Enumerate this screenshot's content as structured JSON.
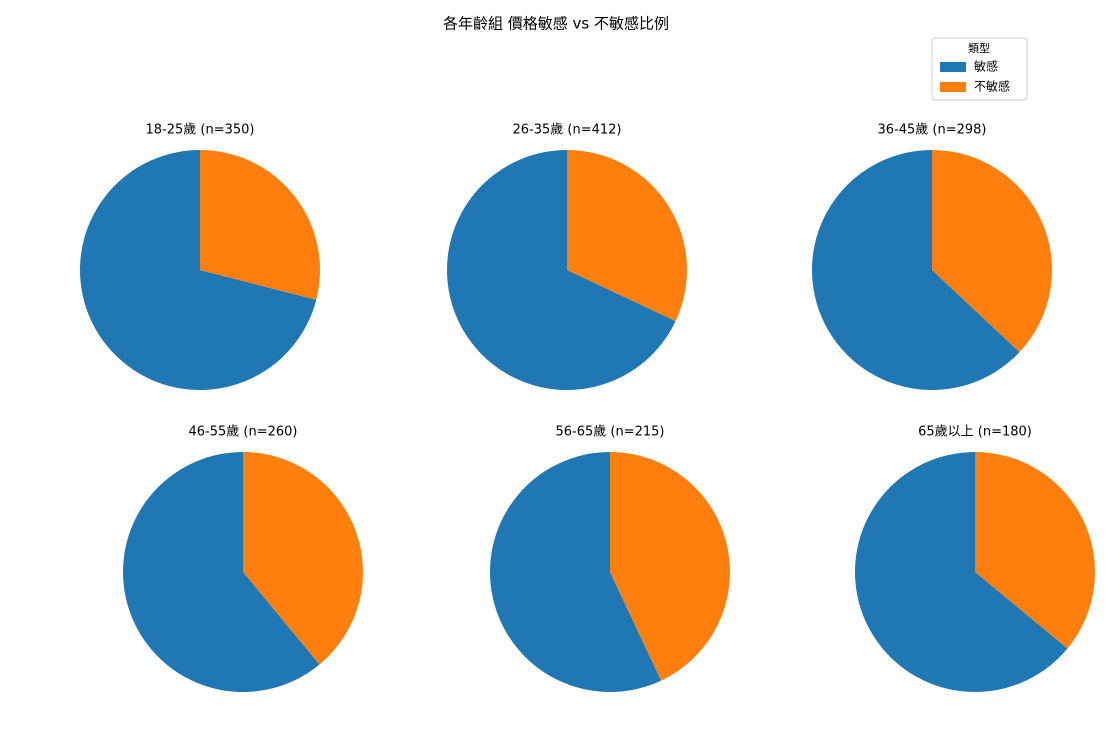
{
  "title": "各年齡組 價格敏感 vs 不敏感比例",
  "legend": {
    "title": "類型",
    "position": "upper right"
  },
  "chart_data": [
    {
      "type": "pie",
      "title": "18-25歲 (n=350)",
      "categories": [
        "敏感",
        "不敏感"
      ],
      "values": [
        71,
        29
      ],
      "colors": [
        "#1f77b4",
        "#ff7f0e"
      ]
    },
    {
      "type": "pie",
      "title": "26-35歲 (n=412)",
      "categories": [
        "敏感",
        "不敏感"
      ],
      "values": [
        68,
        32
      ],
      "colors": [
        "#1f77b4",
        "#ff7f0e"
      ]
    },
    {
      "type": "pie",
      "title": "36-45歲 (n=298)",
      "categories": [
        "敏感",
        "不敏感"
      ],
      "values": [
        63,
        37
      ],
      "colors": [
        "#1f77b4",
        "#ff7f0e"
      ]
    },
    {
      "type": "pie",
      "title": "46-55歲 (n=260)",
      "categories": [
        "敏感",
        "不敏感"
      ],
      "values": [
        61,
        39
      ],
      "colors": [
        "#1f77b4",
        "#ff7f0e"
      ]
    },
    {
      "type": "pie",
      "title": "56-65歲 (n=215)",
      "categories": [
        "敏感",
        "不敏感"
      ],
      "values": [
        57,
        43
      ],
      "colors": [
        "#1f77b4",
        "#ff7f0e"
      ]
    },
    {
      "type": "pie",
      "title": "65歲以上 (n=180)",
      "categories": [
        "敏感",
        "不敏感"
      ],
      "values": [
        64,
        36
      ],
      "colors": [
        "#1f77b4",
        "#ff7f0e"
      ]
    }
  ]
}
